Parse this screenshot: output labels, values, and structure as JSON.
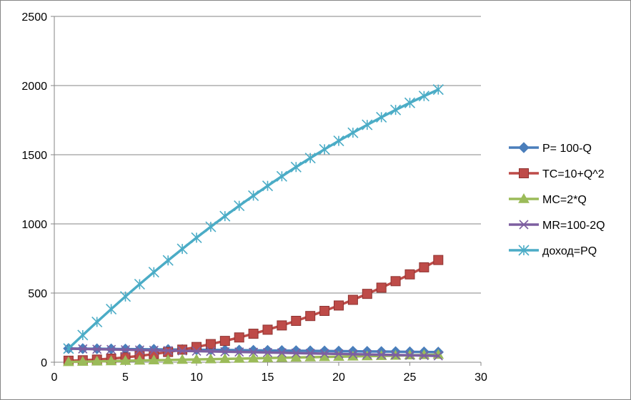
{
  "chart_data": {
    "type": "line",
    "title": "",
    "xlabel": "",
    "ylabel": "",
    "xlim": [
      0,
      30
    ],
    "ylim": [
      0,
      2500
    ],
    "x_ticks": [
      0,
      5,
      10,
      15,
      20,
      25,
      30
    ],
    "y_ticks": [
      0,
      500,
      1000,
      1500,
      2000,
      2500
    ],
    "x_tick_labels": [
      "0",
      "5",
      "10",
      "15",
      "20",
      "25",
      "30"
    ],
    "y_tick_labels": [
      "0",
      "500",
      "1000",
      "1500",
      "2000",
      "2500"
    ],
    "grid": "horizontal major",
    "legend_position": "right",
    "x": [
      1,
      2,
      3,
      4,
      5,
      6,
      7,
      8,
      9,
      10,
      11,
      12,
      13,
      14,
      15,
      16,
      17,
      18,
      19,
      20,
      21,
      22,
      23,
      24,
      25,
      26,
      27
    ],
    "series": [
      {
        "name": "P= 100-Q",
        "color": "#4A7EBB",
        "marker": "diamond",
        "values": [
          99,
          98,
          97,
          96,
          95,
          94,
          93,
          92,
          91,
          90,
          89,
          88,
          87,
          86,
          85,
          84,
          83,
          82,
          81,
          80,
          79,
          78,
          77,
          76,
          75,
          74,
          73
        ]
      },
      {
        "name": "TC=10+Q^2",
        "color": "#BE4B48",
        "marker": "square",
        "values": [
          11,
          14,
          19,
          26,
          35,
          46,
          59,
          74,
          91,
          110,
          131,
          154,
          179,
          206,
          235,
          266,
          299,
          334,
          371,
          410,
          451,
          494,
          539,
          586,
          635,
          686,
          739
        ]
      },
      {
        "name": "MC=2*Q",
        "color": "#9BBB59",
        "marker": "triangle",
        "values": [
          2,
          4,
          6,
          8,
          10,
          12,
          14,
          16,
          18,
          20,
          22,
          24,
          26,
          28,
          30,
          32,
          34,
          36,
          38,
          40,
          42,
          44,
          46,
          48,
          50,
          52,
          54
        ]
      },
      {
        "name": "MR=100-2Q",
        "color": "#7D5FA0",
        "marker": "x",
        "values": [
          98,
          96,
          94,
          92,
          90,
          88,
          86,
          84,
          82,
          80,
          78,
          76,
          74,
          72,
          70,
          68,
          66,
          64,
          62,
          60,
          58,
          56,
          54,
          52,
          50,
          48,
          46
        ]
      },
      {
        "name": "доход=PQ",
        "color": "#4BACC6",
        "marker": "star",
        "values": [
          99,
          196,
          291,
          384,
          475,
          564,
          651,
          736,
          819,
          900,
          979,
          1056,
          1131,
          1204,
          1275,
          1344,
          1411,
          1476,
          1539,
          1600,
          1659,
          1716,
          1771,
          1824,
          1875,
          1924,
          1971
        ]
      }
    ]
  }
}
